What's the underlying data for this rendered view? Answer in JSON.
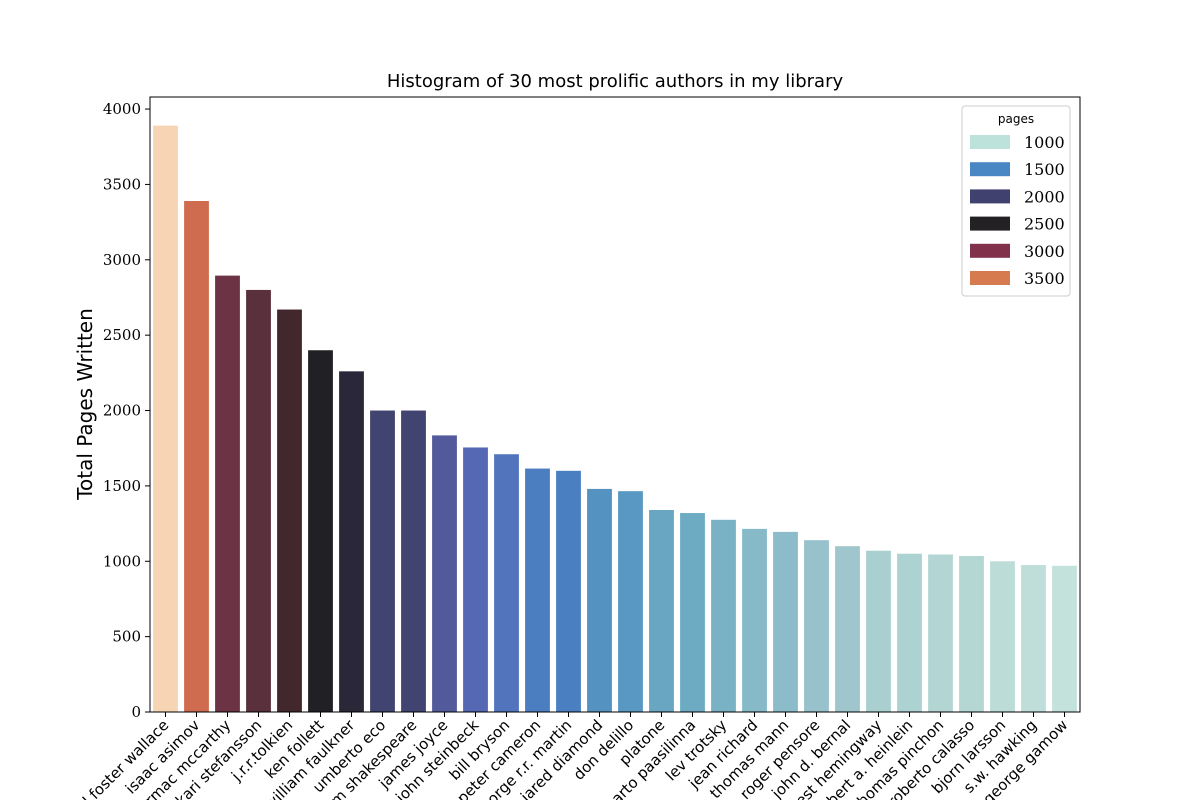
{
  "chart_data": {
    "type": "bar",
    "title": "Histogram of 30 most prolific authors in my library",
    "xlabel": "",
    "ylabel": "Total Pages Written",
    "ylim": [
      0,
      4080
    ],
    "yticks": [
      0,
      500,
      1000,
      1500,
      2000,
      2500,
      3000,
      3500,
      4000
    ],
    "grid": false,
    "categories": [
      "david foster wallace",
      "isaac asimov",
      "cormac mccarthy",
      "kari stefansson",
      "j.r.r.tolkien",
      "ken follett",
      "william faulkner",
      "umberto eco",
      "william shakespeare",
      "james joyce",
      "john steinbeck",
      "bill bryson",
      "peter cameron",
      "george r.r. martin",
      "jared diamond",
      "don delillo",
      "platone",
      "arto paasilinna",
      "lev trotsky",
      "jean richard",
      "thomas mann",
      "roger pensore",
      "john d. bernal",
      "ernest hemingway",
      "robert a. heinlein",
      "thomas pinchon",
      "roberto calasso",
      "bjorn larsson",
      "s.w. hawking",
      "george gamow"
    ],
    "values": [
      3890,
      3390,
      2895,
      2800,
      2670,
      2400,
      2260,
      2000,
      2000,
      1835,
      1755,
      1710,
      1615,
      1600,
      1480,
      1465,
      1340,
      1320,
      1275,
      1215,
      1195,
      1140,
      1100,
      1070,
      1050,
      1045,
      1035,
      1000,
      975,
      970
    ],
    "bar_colors": [
      "#f7d4b4",
      "#cf6b4e",
      "#6c3344",
      "#59303c",
      "#42272d",
      "#212125",
      "#2a2838",
      "#414470",
      "#414470",
      "#525a9b",
      "#5568b3",
      "#5174bd",
      "#4a7ec1",
      "#4a80c2",
      "#5492c1",
      "#5898c2",
      "#68a6c2",
      "#6dabc3",
      "#79b2c5",
      "#87bac8",
      "#8cbcca",
      "#97c2cc",
      "#9fc6cd",
      "#aacfd0",
      "#acd2d1",
      "#b3d5d3",
      "#b4d7d3",
      "#bcdcd7",
      "#bfded9",
      "#c4e2dc"
    ],
    "legend": {
      "title": "pages",
      "placement": "top-right",
      "items": [
        {
          "label": "1000",
          "color": "#bde2db"
        },
        {
          "label": "1500",
          "color": "#4886c4"
        },
        {
          "label": "2000",
          "color": "#414170"
        },
        {
          "label": "2500",
          "color": "#232124"
        },
        {
          "label": "3000",
          "color": "#81324a"
        },
        {
          "label": "3500",
          "color": "#d67b4f"
        }
      ]
    }
  }
}
